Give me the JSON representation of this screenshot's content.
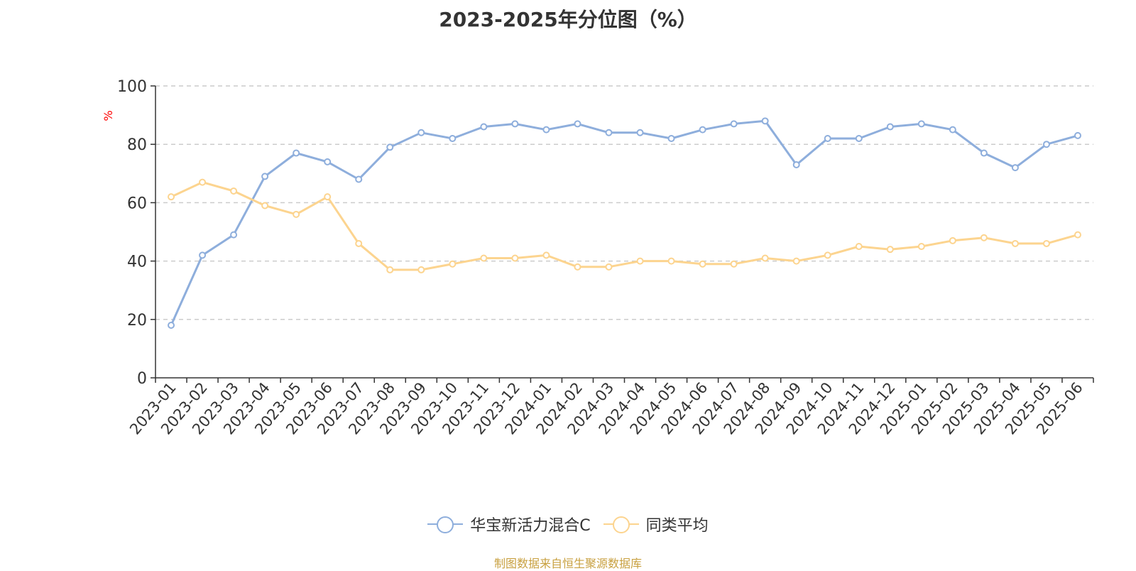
{
  "chart_data": {
    "type": "line",
    "title": "2023-2025年分位图（%）",
    "ylabel": "%",
    "xlabel": "",
    "ylim": [
      0,
      100
    ],
    "yticks": [
      0,
      20,
      40,
      60,
      80,
      100
    ],
    "grid": true,
    "legend_position": "bottom",
    "categories": [
      "2023-01",
      "2023-02",
      "2023-03",
      "2023-04",
      "2023-05",
      "2023-06",
      "2023-07",
      "2023-08",
      "2023-09",
      "2023-10",
      "2023-11",
      "2023-12",
      "2024-01",
      "2024-02",
      "2024-03",
      "2024-04",
      "2024-05",
      "2024-06",
      "2024-07",
      "2024-08",
      "2024-09",
      "2024-10",
      "2024-11",
      "2024-12",
      "2025-01",
      "2025-02",
      "2025-03",
      "2025-04",
      "2025-05",
      "2025-06"
    ],
    "series": [
      {
        "name": "华宝新活力混合C",
        "color": "#8eaedc",
        "values": [
          18,
          42,
          49,
          69,
          77,
          74,
          68,
          79,
          84,
          82,
          86,
          87,
          85,
          87,
          84,
          84,
          82,
          85,
          87,
          88,
          73,
          82,
          82,
          86,
          87,
          85,
          77,
          72,
          80,
          83
        ]
      },
      {
        "name": "同类平均",
        "color": "#fcd48f",
        "values": [
          62,
          67,
          64,
          59,
          56,
          62,
          46,
          37,
          37,
          39,
          41,
          41,
          42,
          38,
          38,
          40,
          40,
          39,
          39,
          41,
          40,
          42,
          45,
          44,
          45,
          47,
          48,
          46,
          46,
          49
        ]
      }
    ]
  },
  "source_text": "制图数据来自恒生聚源数据库",
  "colors": {
    "axis": "#333333",
    "grid": "#cccccc",
    "ylabel": "#ff0000",
    "source": "#c8a040"
  }
}
